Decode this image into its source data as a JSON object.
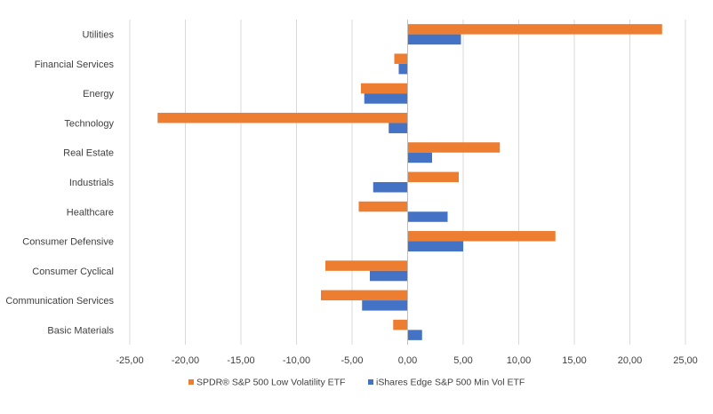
{
  "chart_data": {
    "type": "bar",
    "orientation": "horizontal",
    "title": "",
    "xlabel": "",
    "ylabel": "",
    "categories": [
      "Utilities",
      "Financial Services",
      "Energy",
      "Technology",
      "Real Estate",
      "Industrials",
      "Healthcare",
      "Consumer Defensive",
      "Consumer Cyclical",
      "Communication Services",
      "Basic Materials"
    ],
    "series": [
      {
        "name": "SPDR® S&P 500 Low Volatility ETF",
        "color": "#ED7D31",
        "values": [
          22.9,
          -1.2,
          -4.2,
          -22.5,
          8.3,
          4.6,
          -4.4,
          13.3,
          -7.4,
          -7.8,
          -1.3
        ]
      },
      {
        "name": "iShares Edge S&P 500 Min Vol ETF",
        "color": "#4472C4",
        "values": [
          4.8,
          -0.8,
          -3.9,
          -1.7,
          2.2,
          -3.1,
          3.6,
          5.0,
          -3.4,
          -4.1,
          1.3
        ]
      }
    ],
    "xlim": [
      -25,
      25
    ],
    "xticks": [
      -25,
      -20,
      -15,
      -10,
      -5,
      0,
      5,
      10,
      15,
      20,
      25
    ],
    "xtick_labels": [
      "-25,00",
      "-20,00",
      "-15,00",
      "-10,00",
      "-5,00",
      "0,00",
      "5,00",
      "10,00",
      "15,00",
      "20,00",
      "25,00"
    ],
    "grid": true,
    "legend_position": "bottom"
  }
}
